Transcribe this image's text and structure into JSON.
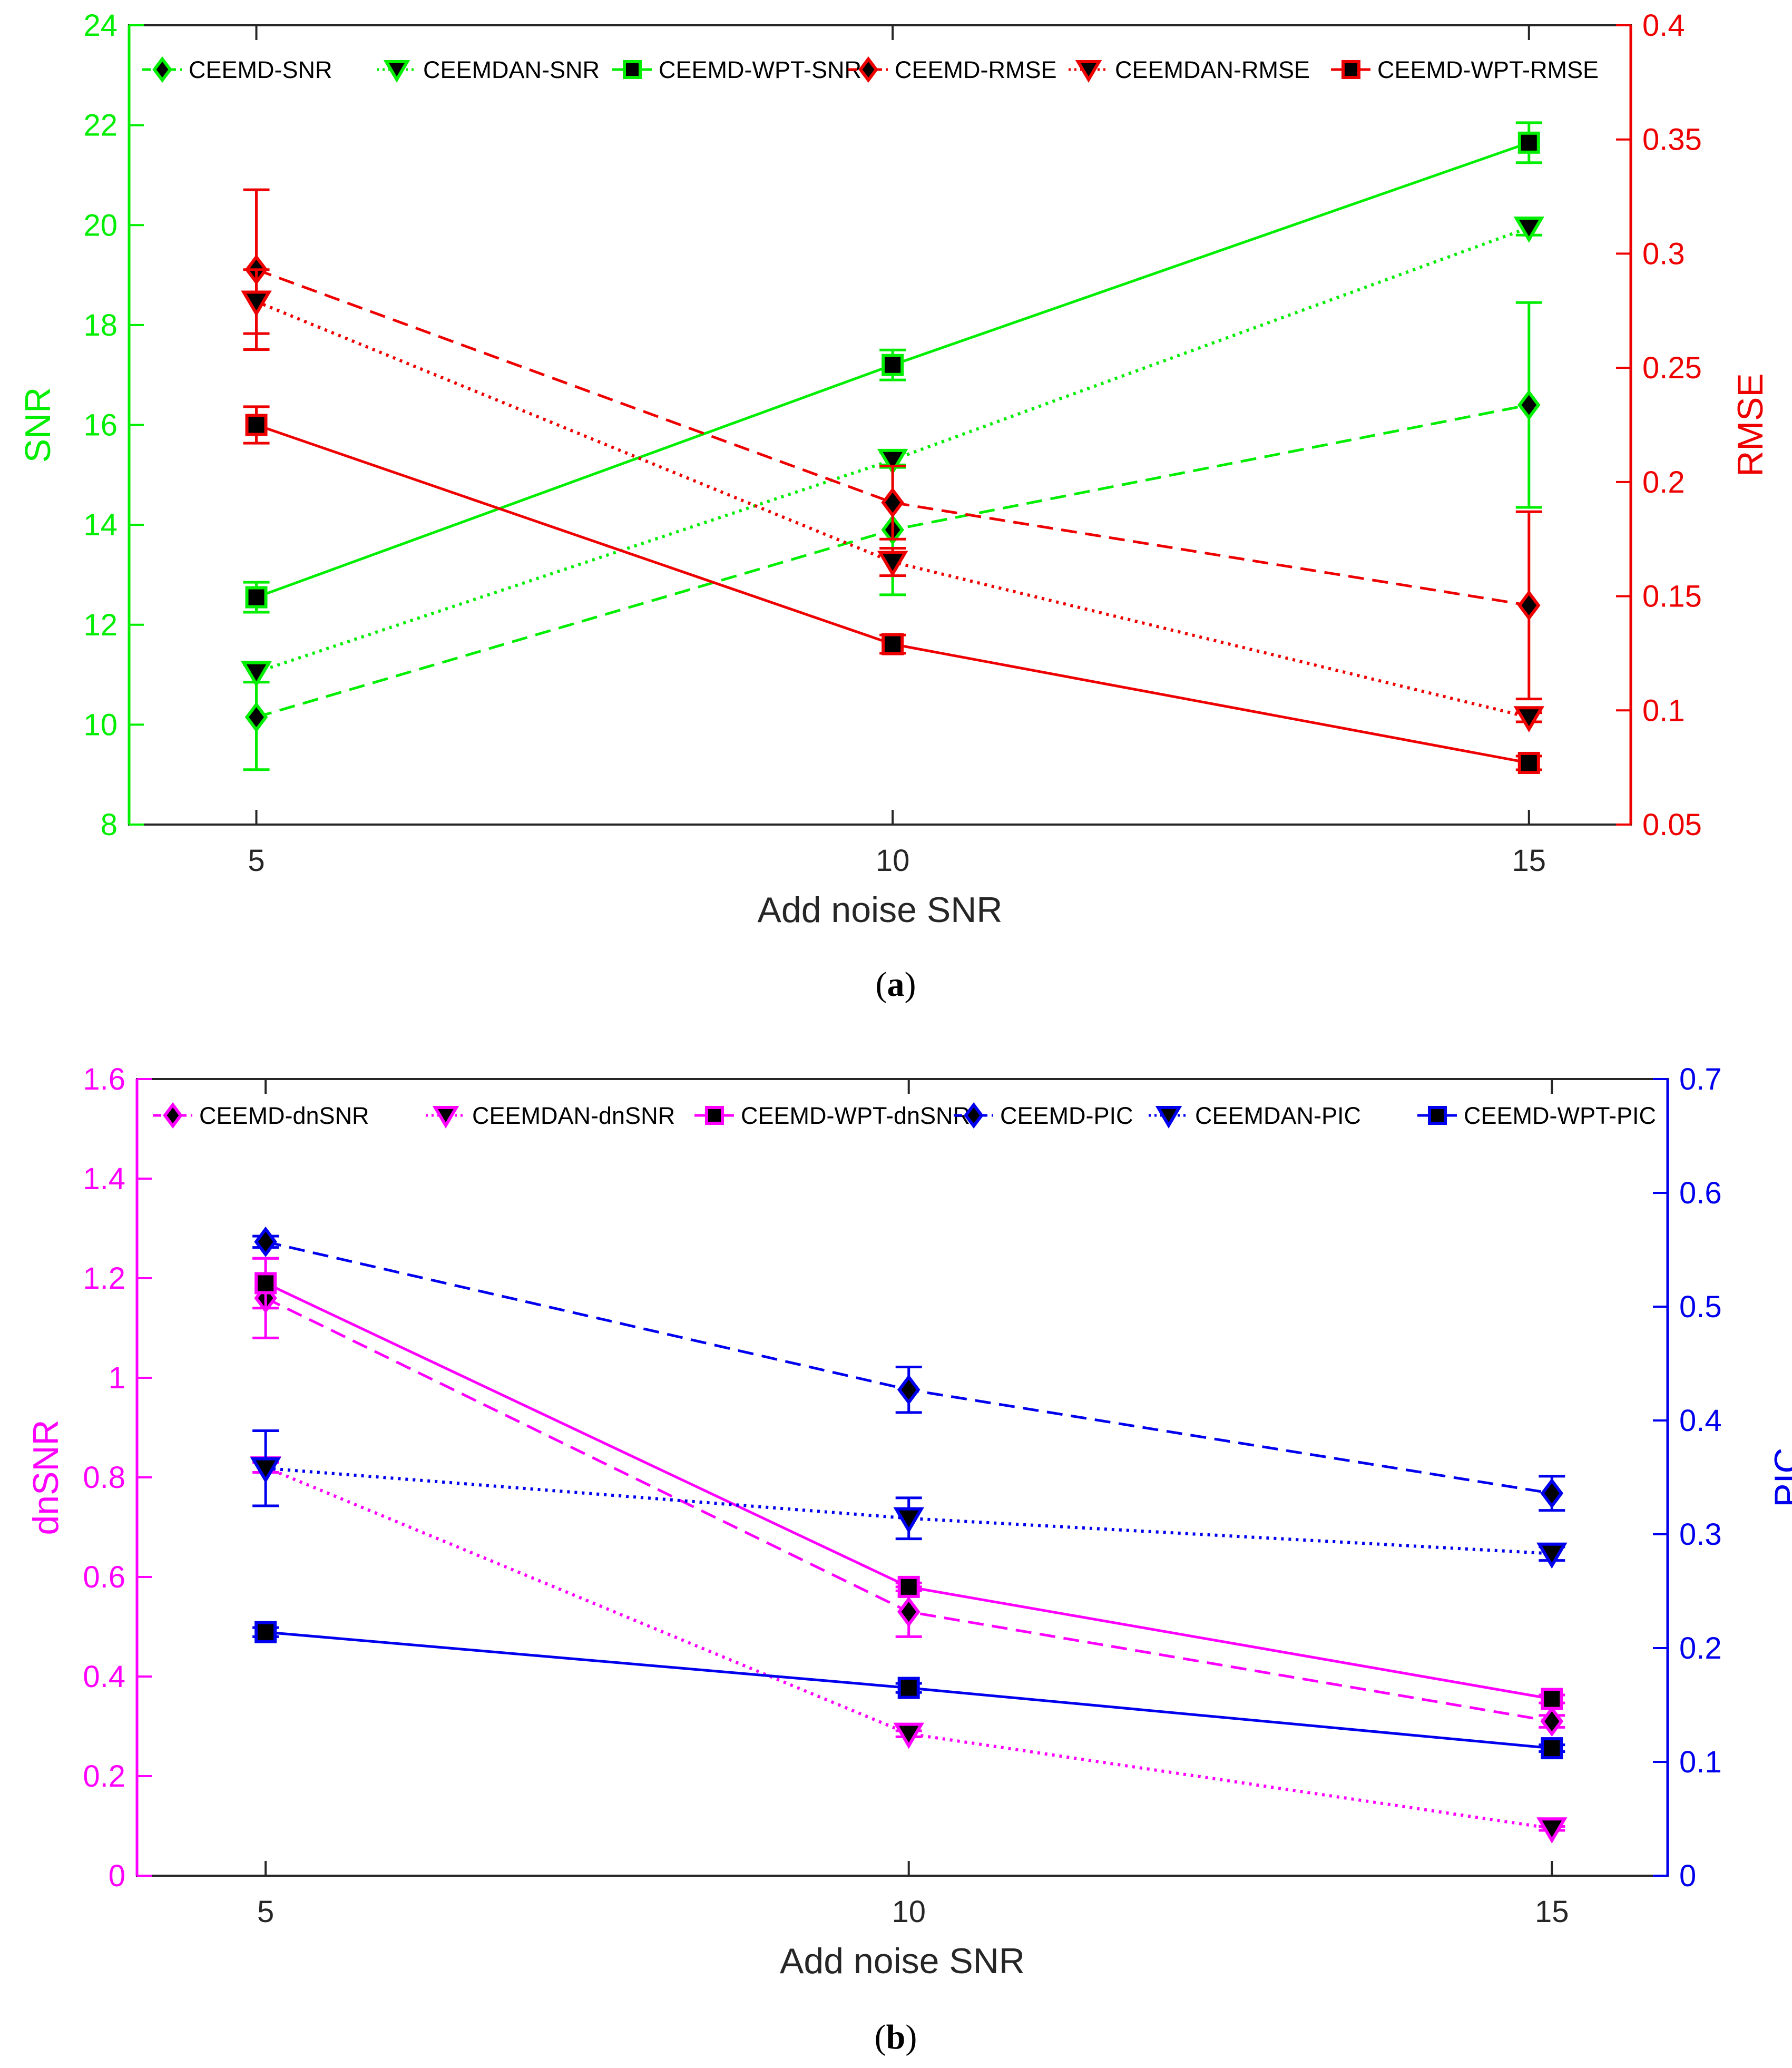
{
  "chart_data": [
    {
      "type": "line",
      "panel_label": "a",
      "xlabel": "Add noise SNR",
      "x": [
        5,
        10,
        15
      ],
      "xticks": [
        "5",
        "10",
        "15"
      ],
      "xlim": [
        4,
        15.8
      ],
      "left_axis": {
        "label": "SNR",
        "color": "#00ee00",
        "ylim": [
          8,
          24
        ],
        "ticks": [
          "8",
          "10",
          "12",
          "14",
          "16",
          "18",
          "20",
          "22",
          "24"
        ]
      },
      "right_axis": {
        "label": "RMSE",
        "color": "#ee0000",
        "ylim": [
          0.05,
          0.4
        ],
        "ticks": [
          "0.05",
          "0.1",
          "0.15",
          "0.2",
          "0.25",
          "0.3",
          "0.35",
          "0.4"
        ]
      },
      "series": [
        {
          "name": "CEEMD-SNR",
          "axis": "left",
          "color": "#00ee00",
          "dash": "dashed",
          "marker": "diamond",
          "values": [
            10.15,
            13.9,
            16.4
          ],
          "errors": [
            1.05,
            1.3,
            2.05
          ]
        },
        {
          "name": "CEEMDAN-SNR",
          "axis": "left",
          "color": "#00ee00",
          "dash": "dotted",
          "marker": "triangle-down",
          "values": [
            11.05,
            15.3,
            19.95
          ],
          "errors": [
            0.2,
            0.15,
            0.15
          ]
        },
        {
          "name": "CEEMD-WPT-SNR",
          "axis": "left",
          "color": "#00ee00",
          "dash": "solid",
          "marker": "square",
          "values": [
            12.55,
            17.2,
            21.65
          ],
          "errors": [
            0.3,
            0.3,
            0.4
          ]
        },
        {
          "name": "CEEMD-RMSE",
          "axis": "right",
          "color": "#ee0000",
          "dash": "dashed",
          "marker": "diamond",
          "values": [
            0.293,
            0.191,
            0.146
          ],
          "errors": [
            0.035,
            0.016,
            0.041
          ]
        },
        {
          "name": "CEEMDAN-RMSE",
          "axis": "right",
          "color": "#ee0000",
          "dash": "dotted",
          "marker": "triangle-down",
          "values": [
            0.279,
            0.165,
            0.097
          ],
          "errors": [
            0.014,
            0.006,
            0.002
          ]
        },
        {
          "name": "CEEMD-WPT-RMSE",
          "axis": "right",
          "color": "#ee0000",
          "dash": "solid",
          "marker": "square",
          "values": [
            0.225,
            0.129,
            0.077
          ],
          "errors": [
            0.008,
            0.004,
            0.003
          ]
        }
      ]
    },
    {
      "type": "line",
      "panel_label": "b",
      "xlabel": "Add noise SNR",
      "x": [
        5,
        10,
        15
      ],
      "xticks": [
        "5",
        "10",
        "15"
      ],
      "xlim": [
        4,
        15.9
      ],
      "left_axis": {
        "label": "dnSNR",
        "color": "#ff00ff",
        "ylim": [
          0,
          1.6
        ],
        "ticks": [
          "0",
          "0.2",
          "0.4",
          "0.6",
          "0.8",
          "1",
          "1.2",
          "1.4",
          "1.6"
        ]
      },
      "right_axis": {
        "label": "PIC",
        "color": "#0000ee",
        "ylim": [
          0,
          0.7
        ],
        "ticks": [
          "0",
          "0.1",
          "0.2",
          "0.3",
          "0.4",
          "0.5",
          "0.6",
          "0.7"
        ]
      },
      "series": [
        {
          "name": "CEEMD-dnSNR",
          "axis": "left",
          "color": "#ff00ff",
          "dash": "dashed",
          "marker": "diamond",
          "values": [
            1.16,
            0.53,
            0.31
          ],
          "errors": [
            0.08,
            0.05,
            0.012
          ]
        },
        {
          "name": "CEEMDAN-dnSNR",
          "axis": "left",
          "color": "#ff00ff",
          "dash": "dotted",
          "marker": "triangle-down",
          "values": [
            0.82,
            0.285,
            0.095
          ],
          "errors": [
            0.01,
            0.006,
            0.004
          ]
        },
        {
          "name": "CEEMD-WPT-dnSNR",
          "axis": "left",
          "color": "#ff00ff",
          "dash": "solid",
          "marker": "square",
          "values": [
            1.19,
            0.58,
            0.355
          ],
          "errors": [
            0.05,
            0.008,
            0.008
          ]
        },
        {
          "name": "CEEMD-PIC",
          "axis": "right",
          "color": "#0000ee",
          "dash": "dashed",
          "marker": "diamond",
          "values": [
            0.557,
            0.427,
            0.336
          ],
          "errors": [
            0.005,
            0.02,
            0.015
          ]
        },
        {
          "name": "CEEMDAN-PIC",
          "axis": "right",
          "color": "#0000ee",
          "dash": "dotted",
          "marker": "triangle-down",
          "values": [
            0.358,
            0.314,
            0.283
          ],
          "errors": [
            0.033,
            0.018,
            0.006
          ]
        },
        {
          "name": "CEEMD-WPT-PIC",
          "axis": "right",
          "color": "#0000ee",
          "dash": "solid",
          "marker": "square",
          "values": [
            0.214,
            0.165,
            0.112
          ],
          "errors": [
            0.004,
            0.004,
            0.003
          ]
        }
      ]
    }
  ]
}
